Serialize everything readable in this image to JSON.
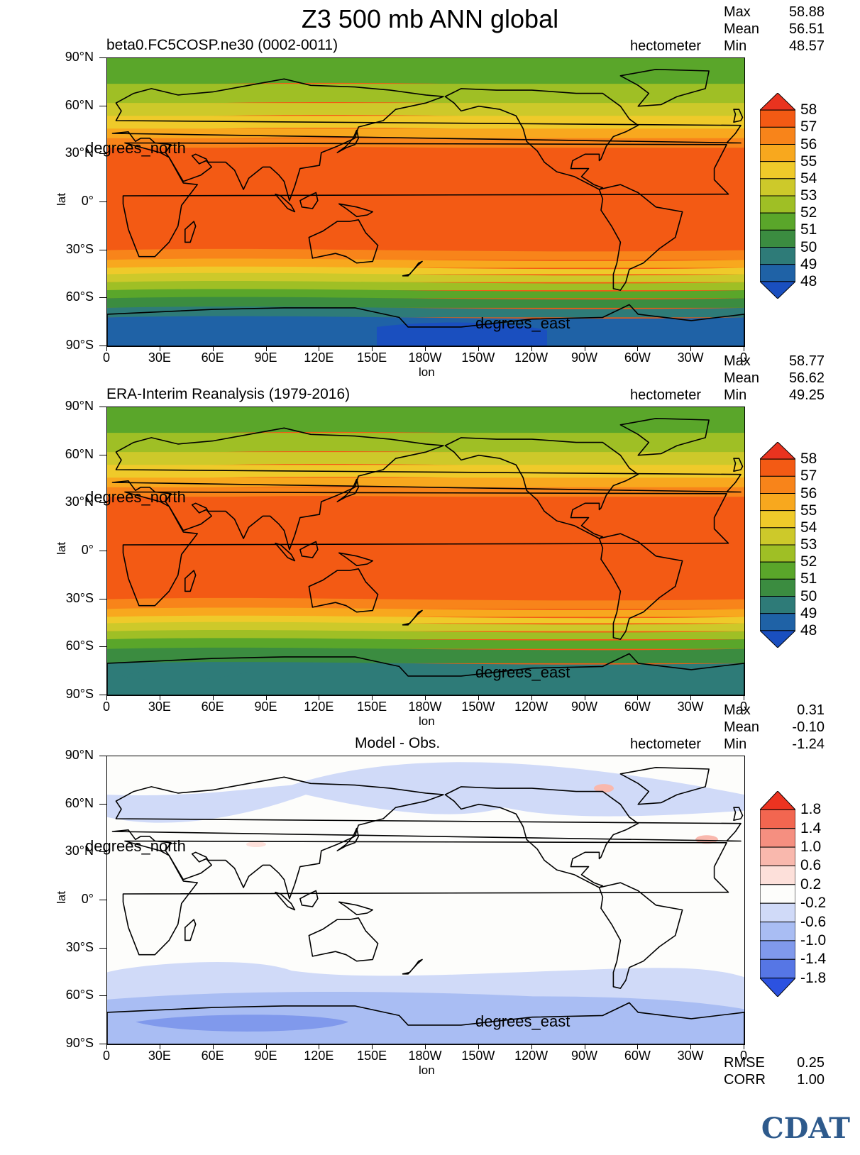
{
  "title": "Z3 500 mb ANN global",
  "units": "hectometer",
  "panels": [
    {
      "name": "model",
      "title": "beta0.FC5COSP.ne30 (0002-0011)",
      "stats": {
        "max_label": "Max",
        "max": "58.88",
        "mean_label": "Mean",
        "mean": "56.51",
        "min_label": "Min",
        "min": "48.57"
      },
      "colorbar": {
        "levels": [
          "58",
          "57",
          "56",
          "55",
          "54",
          "53",
          "52",
          "51",
          "50",
          "49",
          "48"
        ],
        "colors": [
          "#e9331f",
          "#f35a14",
          "#f8841a",
          "#f8a81e",
          "#efca2a",
          "#cdc92a",
          "#9fbf25",
          "#5aa62a",
          "#3b8c40",
          "#2e7b78",
          "#1f62a6",
          "#1a4fbf"
        ]
      }
    },
    {
      "name": "obs",
      "title": "ERA-Interim Reanalysis (1979-2016)",
      "stats": {
        "max_label": "Max",
        "max": "58.77",
        "mean_label": "Mean",
        "mean": "56.62",
        "min_label": "Min",
        "min": "49.25"
      },
      "colorbar": {
        "levels": [
          "58",
          "57",
          "56",
          "55",
          "54",
          "53",
          "52",
          "51",
          "50",
          "49",
          "48"
        ],
        "colors": [
          "#e9331f",
          "#f35a14",
          "#f8841a",
          "#f8a81e",
          "#efca2a",
          "#cdc92a",
          "#9fbf25",
          "#5aa62a",
          "#3b8c40",
          "#2e7b78",
          "#1f62a6",
          "#1a4fbf"
        ]
      }
    },
    {
      "name": "diff",
      "title": "Model - Obs.",
      "stats": {
        "max_label": "Max",
        "max": "0.31",
        "mean_label": "Mean",
        "mean": "-0.10",
        "min_label": "Min",
        "min": "-1.24"
      },
      "colorbar": {
        "levels": [
          "1.8",
          "1.4",
          "1.0",
          "0.6",
          "0.2",
          "-0.2",
          "-0.6",
          "-1.0",
          "-1.4",
          "-1.8"
        ],
        "colors": [
          "#ec3320",
          "#f26650",
          "#f58f80",
          "#f9b8ad",
          "#fde0da",
          "#fdfdfb",
          "#d0daf8",
          "#a9bdf3",
          "#8099ec",
          "#5676e5",
          "#2c52e0"
        ]
      },
      "extra": {
        "rmse_label": "RMSE",
        "rmse": "0.25",
        "corr_label": "CORR",
        "corr": "1.00"
      }
    }
  ],
  "axes": {
    "lat_ticks": [
      "90°N",
      "60°N",
      "30°N",
      "0°",
      "30°S",
      "60°S",
      "90°S"
    ],
    "lon_ticks": [
      "0",
      "30E",
      "60E",
      "90E",
      "120E",
      "150E",
      "180W",
      "150W",
      "120W",
      "90W",
      "60W",
      "30W",
      "0"
    ],
    "xlabel": "lon",
    "ylabel": "lat",
    "lat_units": "degrees_north",
    "lon_units": "degrees_east"
  },
  "logo": "CDAT"
}
